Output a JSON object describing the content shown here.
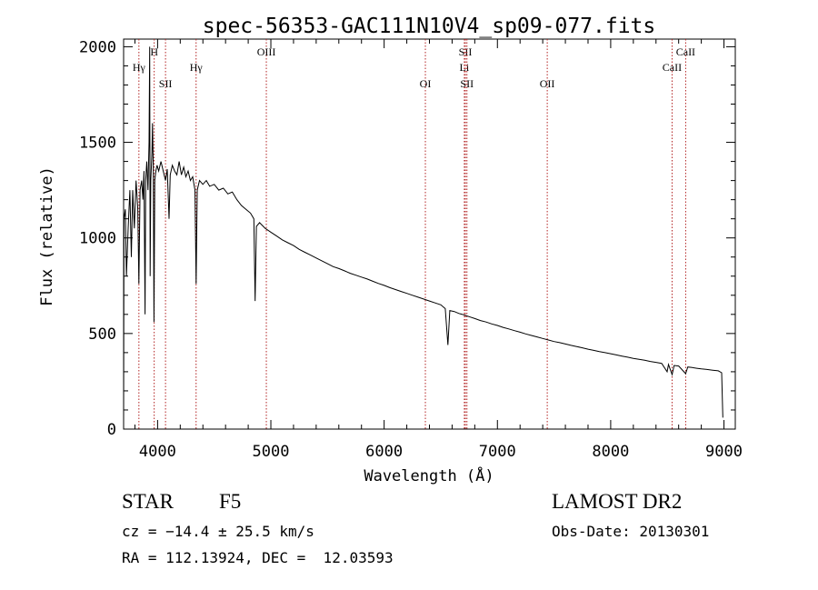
{
  "chart_data": {
    "type": "line",
    "title": "spec-56353-GAC111N10V4_sp09-077.fits",
    "xlabel": "Wavelength (Å)",
    "ylabel": "Flux (relative)",
    "xlim": [
      3700,
      9100
    ],
    "ylim": [
      0,
      2040
    ],
    "xticks": [
      4000,
      5000,
      6000,
      7000,
      8000,
      9000
    ],
    "yticks": [
      0,
      500,
      1000,
      1500,
      2000
    ],
    "grid": false,
    "line_color": "#000000",
    "marker_color": "#b22222",
    "spectral_lines": [
      {
        "label": "Hγ",
        "x": 3835,
        "row": 2
      },
      {
        "label": "H",
        "x": 3970,
        "row": 1
      },
      {
        "label": "SII",
        "x": 4070,
        "row": 3
      },
      {
        "label": "Hγ",
        "x": 4340,
        "row": 2
      },
      {
        "label": "OIII",
        "x": 4960,
        "row": 1
      },
      {
        "label": "OI",
        "x": 6364,
        "row": 3
      },
      {
        "label": "SII",
        "x": 6717,
        "row": 1
      },
      {
        "label": "Li",
        "x": 6708,
        "row": 2
      },
      {
        "label": "SII",
        "x": 6731,
        "row": 3
      },
      {
        "label": "OII",
        "x": 7440,
        "row": 3
      },
      {
        "label": "CaII",
        "x": 8662,
        "row": 1
      },
      {
        "label": "CaII",
        "x": 8542,
        "row": 2
      }
    ],
    "series": [
      {
        "points": [
          [
            3700,
            30
          ],
          [
            3703,
            1100
          ],
          [
            3715,
            1150
          ],
          [
            3725,
            800
          ],
          [
            3740,
            1050
          ],
          [
            3755,
            1250
          ],
          [
            3768,
            900
          ],
          [
            3780,
            1250
          ],
          [
            3795,
            1050
          ],
          [
            3810,
            1300
          ],
          [
            3825,
            1150
          ],
          [
            3835,
            760
          ],
          [
            3845,
            1250
          ],
          [
            3860,
            1300
          ],
          [
            3870,
            1200
          ],
          [
            3880,
            1350
          ],
          [
            3889,
            600
          ],
          [
            3895,
            1300
          ],
          [
            3905,
            1400
          ],
          [
            3915,
            1250
          ],
          [
            3925,
            1500
          ],
          [
            3930,
            2000
          ],
          [
            3934,
            800
          ],
          [
            3940,
            1300
          ],
          [
            3950,
            1450
          ],
          [
            3955,
            1600
          ],
          [
            3962,
            1350
          ],
          [
            3968,
            560
          ],
          [
            3975,
            1300
          ],
          [
            3985,
            1350
          ],
          [
            3995,
            1380
          ],
          [
            4010,
            1350
          ],
          [
            4030,
            1400
          ],
          [
            4050,
            1350
          ],
          [
            4070,
            1300
          ],
          [
            4085,
            1360
          ],
          [
            4101,
            1100
          ],
          [
            4112,
            1330
          ],
          [
            4130,
            1380
          ],
          [
            4150,
            1350
          ],
          [
            4170,
            1330
          ],
          [
            4190,
            1400
          ],
          [
            4210,
            1330
          ],
          [
            4230,
            1370
          ],
          [
            4250,
            1320
          ],
          [
            4270,
            1350
          ],
          [
            4290,
            1300
          ],
          [
            4310,
            1320
          ],
          [
            4330,
            1250
          ],
          [
            4340,
            760
          ],
          [
            4350,
            1250
          ],
          [
            4370,
            1300
          ],
          [
            4400,
            1280
          ],
          [
            4430,
            1300
          ],
          [
            4460,
            1270
          ],
          [
            4500,
            1280
          ],
          [
            4540,
            1250
          ],
          [
            4580,
            1260
          ],
          [
            4620,
            1230
          ],
          [
            4660,
            1240
          ],
          [
            4700,
            1200
          ],
          [
            4740,
            1170
          ],
          [
            4780,
            1150
          ],
          [
            4820,
            1130
          ],
          [
            4850,
            1100
          ],
          [
            4861,
            670
          ],
          [
            4872,
            1060
          ],
          [
            4900,
            1080
          ],
          [
            4950,
            1050
          ],
          [
            5000,
            1030
          ],
          [
            5050,
            1010
          ],
          [
            5100,
            990
          ],
          [
            5150,
            975
          ],
          [
            5200,
            960
          ],
          [
            5250,
            940
          ],
          [
            5300,
            925
          ],
          [
            5350,
            910
          ],
          [
            5400,
            895
          ],
          [
            5450,
            880
          ],
          [
            5500,
            865
          ],
          [
            5550,
            850
          ],
          [
            5600,
            840
          ],
          [
            5650,
            828
          ],
          [
            5700,
            815
          ],
          [
            5750,
            805
          ],
          [
            5800,
            795
          ],
          [
            5850,
            785
          ],
          [
            5900,
            773
          ],
          [
            5950,
            762
          ],
          [
            6000,
            752
          ],
          [
            6050,
            740
          ],
          [
            6100,
            730
          ],
          [
            6150,
            720
          ],
          [
            6200,
            710
          ],
          [
            6250,
            700
          ],
          [
            6300,
            690
          ],
          [
            6350,
            680
          ],
          [
            6400,
            670
          ],
          [
            6450,
            660
          ],
          [
            6500,
            650
          ],
          [
            6540,
            630
          ],
          [
            6563,
            440
          ],
          [
            6580,
            620
          ],
          [
            6620,
            615
          ],
          [
            6660,
            605
          ],
          [
            6700,
            598
          ],
          [
            6750,
            588
          ],
          [
            6800,
            578
          ],
          [
            6850,
            568
          ],
          [
            6900,
            560
          ],
          [
            6950,
            550
          ],
          [
            7000,
            542
          ],
          [
            7050,
            532
          ],
          [
            7100,
            524
          ],
          [
            7150,
            515
          ],
          [
            7200,
            507
          ],
          [
            7250,
            498
          ],
          [
            7300,
            490
          ],
          [
            7350,
            482
          ],
          [
            7400,
            474
          ],
          [
            7450,
            466
          ],
          [
            7500,
            458
          ],
          [
            7550,
            452
          ],
          [
            7600,
            445
          ],
          [
            7650,
            438
          ],
          [
            7700,
            432
          ],
          [
            7750,
            425
          ],
          [
            7800,
            418
          ],
          [
            7850,
            412
          ],
          [
            7900,
            405
          ],
          [
            7950,
            400
          ],
          [
            8000,
            394
          ],
          [
            8050,
            388
          ],
          [
            8100,
            382
          ],
          [
            8150,
            376
          ],
          [
            8200,
            370
          ],
          [
            8250,
            365
          ],
          [
            8300,
            360
          ],
          [
            8350,
            354
          ],
          [
            8400,
            349
          ],
          [
            8450,
            344
          ],
          [
            8498,
            300
          ],
          [
            8510,
            338
          ],
          [
            8542,
            285
          ],
          [
            8560,
            333
          ],
          [
            8600,
            330
          ],
          [
            8662,
            290
          ],
          [
            8680,
            325
          ],
          [
            8720,
            322
          ],
          [
            8760,
            318
          ],
          [
            8800,
            315
          ],
          [
            8850,
            312
          ],
          [
            8900,
            308
          ],
          [
            8950,
            305
          ],
          [
            8980,
            295
          ],
          [
            8990,
            60
          ]
        ]
      }
    ]
  },
  "info": {
    "object": "STAR",
    "subclass": "F5",
    "cz": "cz = −14.4 ± 25.5 km/s",
    "coords": "RA = 112.13924, DEC =  12.03593",
    "survey": "LAMOST DR2",
    "obs_date": "Obs-Date: 20130301"
  }
}
